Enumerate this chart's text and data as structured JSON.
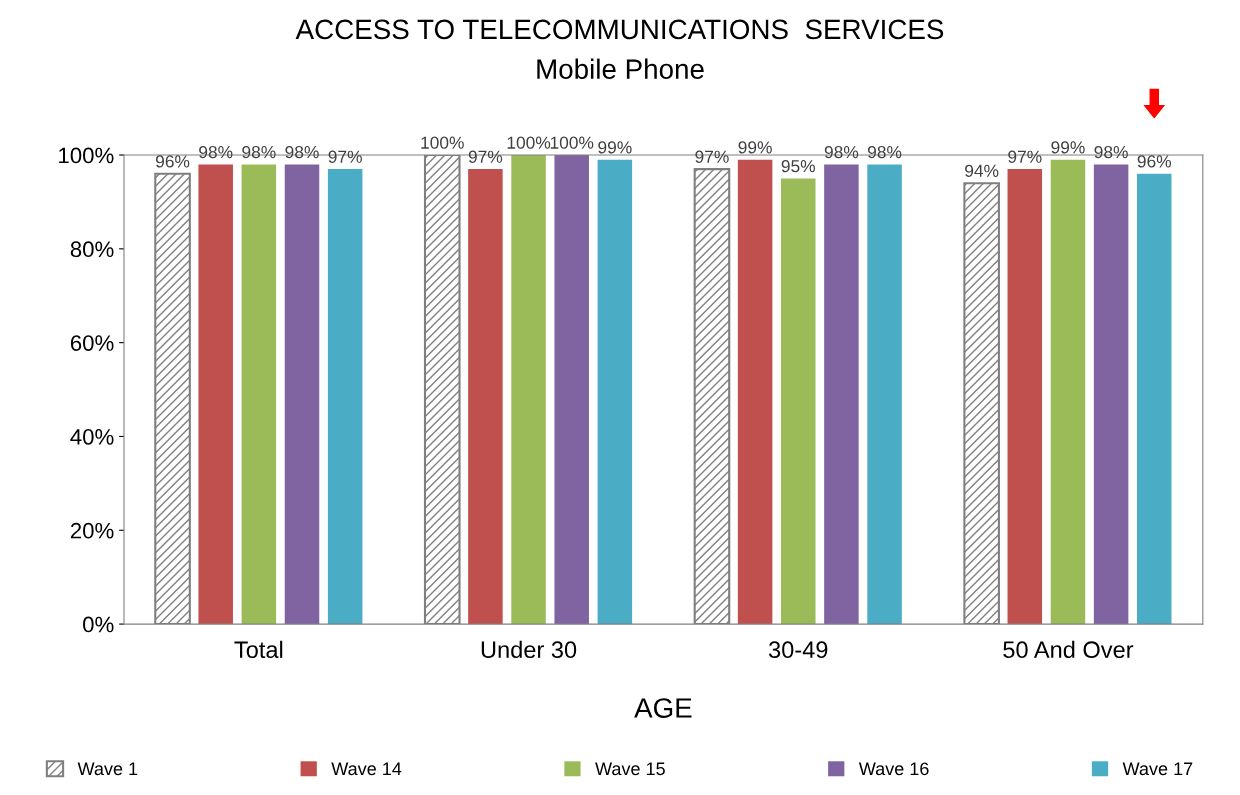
{
  "chart_data": {
    "type": "bar",
    "title": "ACCESS TO TELECOMMUNICATIONS  SERVICES",
    "subtitle": "Mobile Phone",
    "xlabel": "AGE",
    "categories": [
      "Total",
      "Under 30",
      "30-49",
      "50 And Over"
    ],
    "series": [
      {
        "name": "Wave 1",
        "color": "#7f7f7f",
        "values": [
          96,
          100,
          97,
          94
        ],
        "value_labels": [
          "96%",
          "100%",
          "97%",
          "94%"
        ]
      },
      {
        "name": "Wave 14",
        "color": "#c0504d",
        "values": [
          98,
          97,
          99,
          97
        ],
        "value_labels": [
          "98%",
          "97%",
          "99%",
          "97%"
        ]
      },
      {
        "name": "Wave 15",
        "color": "#9bbb59",
        "values": [
          98,
          100,
          95,
          99
        ],
        "value_labels": [
          "98%",
          "100%",
          "95%",
          "99%"
        ]
      },
      {
        "name": "Wave 16",
        "color": "#8064a2",
        "values": [
          98,
          100,
          98,
          98
        ],
        "value_labels": [
          "98%",
          "100%",
          "98%",
          "98%"
        ]
      },
      {
        "name": "Wave 17",
        "color": "#4bacc6",
        "values": [
          97,
          99,
          98,
          96
        ],
        "value_labels": [
          "97%",
          "99%",
          "98%",
          "96%"
        ]
      }
    ],
    "ylim": [
      0,
      100
    ],
    "yticks": [
      {
        "value": 0,
        "label": "0%"
      },
      {
        "value": 20,
        "label": "20%"
      },
      {
        "value": 40,
        "label": "40%"
      },
      {
        "value": 60,
        "label": "60%"
      },
      {
        "value": 80,
        "label": "80%"
      },
      {
        "value": 100,
        "label": "100%"
      }
    ],
    "grid": false,
    "legend": "bottom"
  }
}
